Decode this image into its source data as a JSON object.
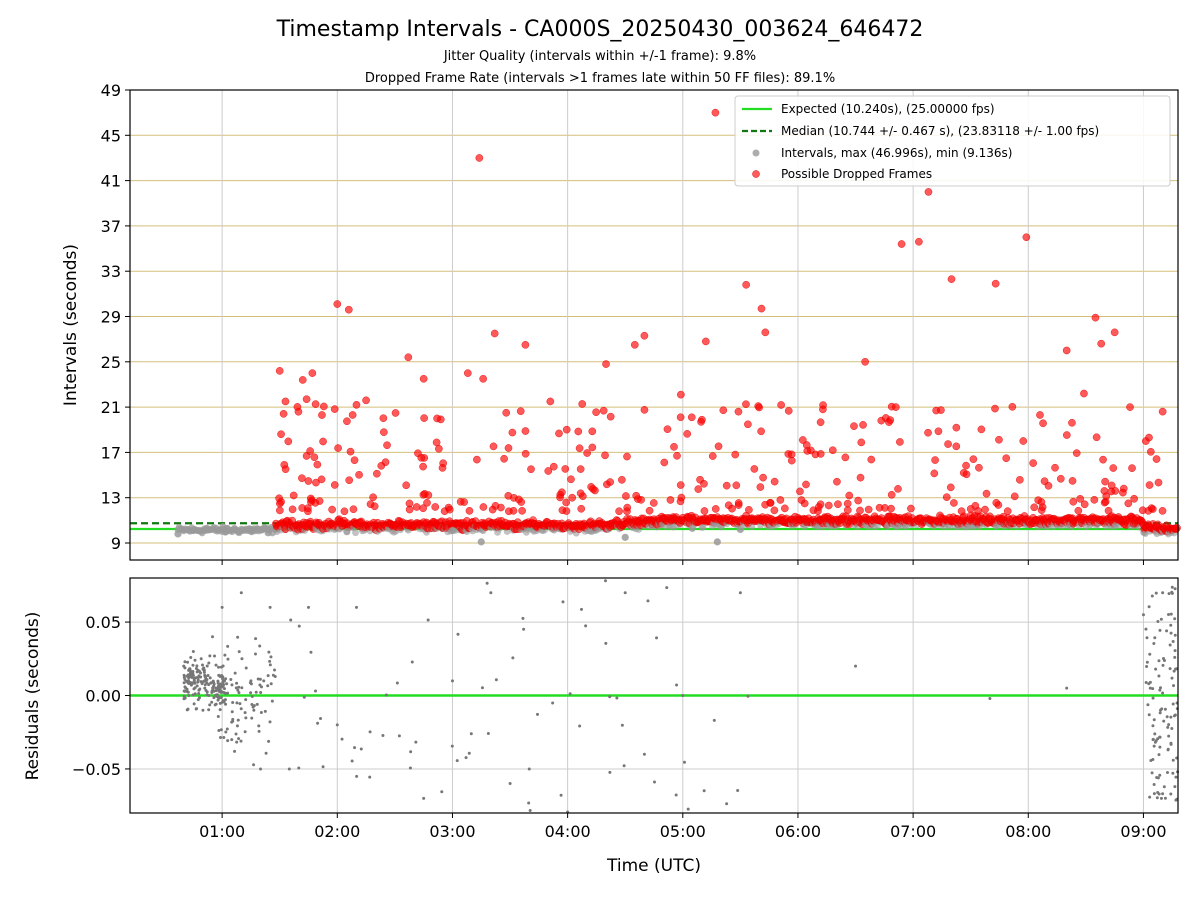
{
  "chart_data": [
    {
      "type": "scatter",
      "title": "Timestamp Intervals - CA000S_20250430_003624_646472",
      "subtitle_lines": [
        "Jitter Quality (intervals within +/-1 frame): 9.8%",
        "Dropped Frame Rate (intervals >1 frames late within 50 FF files): 89.1%"
      ],
      "xlabel": "",
      "ylabel": "Intervals (seconds)",
      "xlim": [
        "00:12",
        "09:18"
      ],
      "ylim": [
        7.5,
        49
      ],
      "yticks": [
        9,
        13,
        17,
        21,
        25,
        29,
        33,
        37,
        41,
        45,
        49
      ],
      "xticks": [
        "01:00",
        "02:00",
        "03:00",
        "04:00",
        "05:00",
        "06:00",
        "07:00",
        "08:00",
        "09:00"
      ],
      "grid": true,
      "legend_position": "top-right",
      "expected_interval": 10.24,
      "median_interval": 10.744,
      "series": [
        {
          "name": "Expected (10.240s), (25.00000 fps)",
          "kind": "line",
          "color": "#22dd22",
          "style": "solid",
          "y": 10.24
        },
        {
          "name": "Median (10.744 +/- 0.467 s), (23.83118 +/- 1.00 fps)",
          "kind": "line",
          "color": "#117711",
          "style": "dashed",
          "y": 10.744
        },
        {
          "name": "Intervals, max (46.996s), min (9.136s)",
          "kind": "scatter",
          "color": "#999999"
        },
        {
          "name": "Possible Dropped Frames",
          "kind": "scatter",
          "color": "#ff0000"
        }
      ],
      "intervals_sample": {
        "x": [
          "00:37",
          "00:45",
          "00:52",
          "01:02",
          "01:15",
          "01:24",
          "02:05",
          "03:00",
          "03:15",
          "04:30",
          "05:05",
          "05:18",
          "05:30"
        ],
        "y": [
          9.8,
          10.1,
          10.3,
          10.0,
          10.2,
          9.9,
          10.0,
          10.1,
          9.1,
          9.5,
          10.3,
          9.1,
          10.2
        ]
      },
      "dropped_outliers": {
        "x": [
          "01:30",
          "01:33",
          "01:42",
          "01:44",
          "01:47",
          "01:52",
          "02:00",
          "02:06",
          "02:10",
          "02:15",
          "02:37",
          "02:45",
          "02:52",
          "03:08",
          "03:14",
          "03:16",
          "03:22",
          "03:28",
          "03:38",
          "03:51",
          "04:20",
          "04:35",
          "04:40",
          "04:59",
          "05:12",
          "05:17",
          "05:29",
          "05:33",
          "05:41",
          "05:43",
          "06:13",
          "06:35",
          "06:51",
          "06:54",
          "07:03",
          "07:08",
          "07:20",
          "07:43",
          "07:59",
          "08:20",
          "08:29",
          "08:35",
          "08:38",
          "08:45",
          "08:53",
          "09:10"
        ],
        "y": [
          24.2,
          21.5,
          23.4,
          21.7,
          24.0,
          20.3,
          30.1,
          29.6,
          21.2,
          21.6,
          25.4,
          23.5,
          20.0,
          24.0,
          43.0,
          23.5,
          27.5,
          20.5,
          26.5,
          21.5,
          24.8,
          26.5,
          27.3,
          22.1,
          26.8,
          47.0,
          20.6,
          31.8,
          29.7,
          27.6,
          20.8,
          25.0,
          21.0,
          35.4,
          35.6,
          40.0,
          32.3,
          31.9,
          36.0,
          26.0,
          22.2,
          28.9,
          26.6,
          27.6,
          21.0,
          20.6
        ]
      }
    },
    {
      "type": "scatter",
      "xlabel": "Time (UTC)",
      "ylabel": "Residuals (seconds)",
      "xlim": [
        "00:12",
        "09:18"
      ],
      "ylim": [
        -0.08,
        0.08
      ],
      "yticks": [
        "−0.05",
        "0.00",
        "0.05"
      ],
      "xticks": [
        "01:00",
        "02:00",
        "03:00",
        "04:00",
        "05:00",
        "06:00",
        "07:00",
        "08:00",
        "09:00"
      ],
      "grid": true,
      "zero_line_color": "#22dd22",
      "residual_color": "#777777",
      "residuals_sample": {
        "x": [
          "00:40",
          "00:45",
          "00:50",
          "00:55",
          "01:00",
          "01:05",
          "01:10",
          "01:15",
          "01:20",
          "01:25",
          "01:35",
          "01:45",
          "02:00",
          "02:10",
          "02:45",
          "03:00",
          "03:20",
          "03:40",
          "04:00",
          "04:30",
          "04:40",
          "05:00",
          "05:30",
          "06:30",
          "07:40",
          "08:20",
          "09:00",
          "09:05",
          "09:10"
        ],
        "y": [
          0.02,
          0.03,
          -0.01,
          0.04,
          0.06,
          -0.03,
          0.07,
          0.01,
          -0.05,
          0.06,
          -0.05,
          0.06,
          -0.02,
          0.06,
          -0.07,
          0.01,
          0.07,
          -0.05,
          -0.08,
          0.07,
          -0.04,
          0.0,
          0.07,
          0.02,
          -0.002,
          0.005,
          0.055,
          -0.03,
          0.07
        ]
      }
    }
  ]
}
